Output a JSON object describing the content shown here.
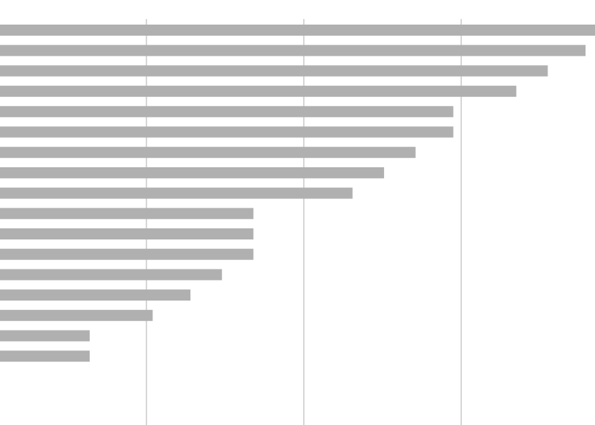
{
  "chart_data": {
    "type": "bar",
    "orientation": "horizontal",
    "categories": [
      null,
      null,
      null,
      null,
      null,
      null,
      null,
      null,
      null,
      null,
      null,
      null,
      null,
      null,
      null,
      null,
      null
    ],
    "values": [
      38.5,
      37.9,
      35.5,
      33.5,
      29.5,
      29.5,
      27.1,
      25.1,
      23.1,
      16.8,
      16.8,
      16.8,
      14.8,
      12.8,
      10.4,
      6.4,
      6.4
    ],
    "color": "#b0b0b0",
    "xlim": [
      0.7,
      38.5
    ],
    "xticks": [
      10,
      20,
      30
    ],
    "grid": true,
    "grid_color": "#cccccc"
  }
}
